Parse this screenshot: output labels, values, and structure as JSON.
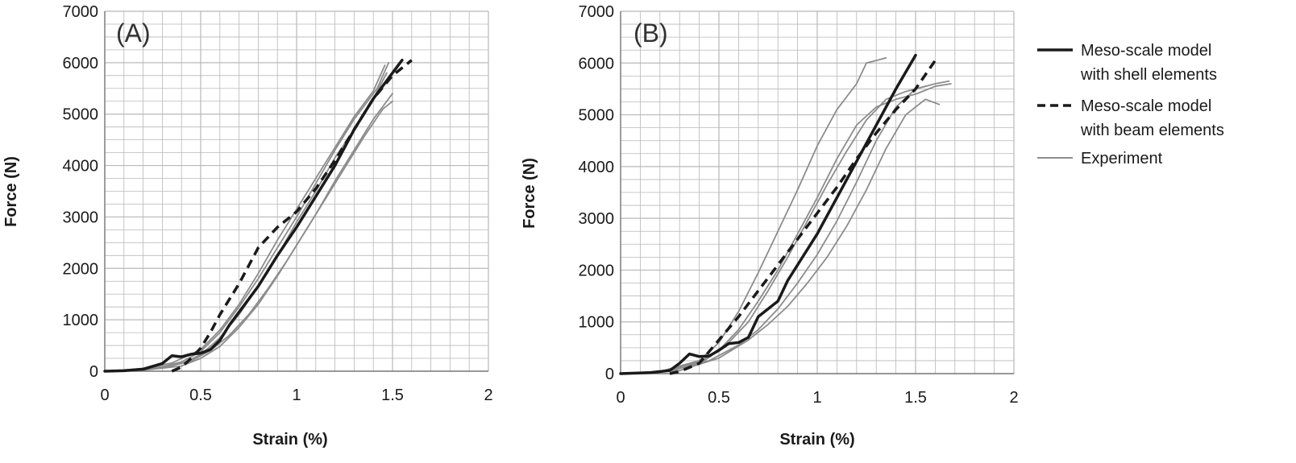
{
  "chart_data": [
    {
      "type": "line",
      "panel_label": "(A)",
      "xlabel": "Strain (%)",
      "ylabel": "Force (N)",
      "xlim": [
        0,
        2
      ],
      "ylim": [
        0,
        7000
      ],
      "x_ticks": [
        "0",
        "0.5",
        "1",
        "1.5",
        "2"
      ],
      "y_ticks": [
        "0",
        "1000",
        "2000",
        "3000",
        "4000",
        "5000",
        "6000",
        "7000"
      ],
      "grid": true,
      "series": [
        {
          "name": "Meso-scale model with shell elements",
          "style": "solid-bold",
          "points": [
            [
              0,
              0
            ],
            [
              0.1,
              10
            ],
            [
              0.2,
              40
            ],
            [
              0.3,
              150
            ],
            [
              0.35,
              300
            ],
            [
              0.4,
              280
            ],
            [
              0.45,
              330
            ],
            [
              0.5,
              350
            ],
            [
              0.55,
              420
            ],
            [
              0.6,
              600
            ],
            [
              0.65,
              900
            ],
            [
              0.7,
              1150
            ],
            [
              0.8,
              1650
            ],
            [
              0.9,
              2250
            ],
            [
              1.0,
              2800
            ],
            [
              1.1,
              3400
            ],
            [
              1.2,
              4000
            ],
            [
              1.3,
              4700
            ],
            [
              1.4,
              5300
            ],
            [
              1.5,
              5800
            ],
            [
              1.55,
              6050
            ]
          ]
        },
        {
          "name": "Meso-scale model with beam elements",
          "style": "dashed",
          "points": [
            [
              0.35,
              0
            ],
            [
              0.4,
              80
            ],
            [
              0.45,
              250
            ],
            [
              0.5,
              450
            ],
            [
              0.55,
              750
            ],
            [
              0.6,
              1100
            ],
            [
              0.7,
              1700
            ],
            [
              0.8,
              2400
            ],
            [
              0.9,
              2800
            ],
            [
              1.0,
              3100
            ],
            [
              1.1,
              3550
            ],
            [
              1.2,
              4100
            ],
            [
              1.3,
              4700
            ],
            [
              1.4,
              5300
            ],
            [
              1.5,
              5750
            ],
            [
              1.6,
              6050
            ]
          ]
        },
        {
          "name": "Experiment",
          "style": "thin-gray",
          "points": [
            [
              0,
              0
            ],
            [
              0.2,
              30
            ],
            [
              0.4,
              150
            ],
            [
              0.5,
              320
            ],
            [
              0.6,
              650
            ],
            [
              0.7,
              1100
            ],
            [
              0.8,
              1650
            ],
            [
              0.9,
              2250
            ],
            [
              1.0,
              2900
            ],
            [
              1.1,
              3500
            ],
            [
              1.2,
              4150
            ],
            [
              1.3,
              4700
            ],
            [
              1.4,
              5300
            ],
            [
              1.47,
              5800
            ]
          ]
        },
        {
          "name": "Experiment",
          "style": "thin-gray",
          "points": [
            [
              0,
              0
            ],
            [
              0.2,
              20
            ],
            [
              0.4,
              100
            ],
            [
              0.5,
              250
            ],
            [
              0.6,
              480
            ],
            [
              0.7,
              850
            ],
            [
              0.8,
              1300
            ],
            [
              0.9,
              1850
            ],
            [
              1.0,
              2450
            ],
            [
              1.1,
              3050
            ],
            [
              1.2,
              3700
            ],
            [
              1.3,
              4300
            ],
            [
              1.4,
              4900
            ],
            [
              1.5,
              5400
            ]
          ]
        },
        {
          "name": "Experiment",
          "style": "thin-gray",
          "points": [
            [
              0,
              0
            ],
            [
              0.25,
              40
            ],
            [
              0.4,
              180
            ],
            [
              0.5,
              380
            ],
            [
              0.6,
              750
            ],
            [
              0.7,
              1250
            ],
            [
              0.8,
              1800
            ],
            [
              0.9,
              2400
            ],
            [
              1.0,
              3000
            ],
            [
              1.1,
              3650
            ],
            [
              1.2,
              4300
            ],
            [
              1.3,
              4900
            ],
            [
              1.42,
              5500
            ],
            [
              1.48,
              6000
            ]
          ]
        },
        {
          "name": "Experiment",
          "style": "thin-gray",
          "points": [
            [
              0,
              0
            ],
            [
              0.3,
              60
            ],
            [
              0.45,
              200
            ],
            [
              0.55,
              400
            ],
            [
              0.65,
              700
            ],
            [
              0.75,
              1100
            ],
            [
              0.85,
              1600
            ],
            [
              0.95,
              2150
            ],
            [
              1.05,
              2750
            ],
            [
              1.15,
              3350
            ],
            [
              1.25,
              3950
            ],
            [
              1.35,
              4550
            ],
            [
              1.45,
              5100
            ],
            [
              1.5,
              5250
            ]
          ]
        },
        {
          "name": "Experiment",
          "style": "thin-gray",
          "points": [
            [
              0,
              0
            ],
            [
              0.2,
              50
            ],
            [
              0.35,
              160
            ],
            [
              0.5,
              420
            ],
            [
              0.6,
              800
            ],
            [
              0.7,
              1300
            ],
            [
              0.8,
              1900
            ],
            [
              0.9,
              2550
            ],
            [
              1.0,
              3150
            ],
            [
              1.1,
              3750
            ],
            [
              1.2,
              4350
            ],
            [
              1.3,
              4950
            ],
            [
              1.4,
              5450
            ],
            [
              1.46,
              5950
            ]
          ]
        }
      ]
    },
    {
      "type": "line",
      "panel_label": "(B)",
      "xlabel": "Strain (%)",
      "ylabel": "Force (N)",
      "xlim": [
        0,
        2
      ],
      "ylim": [
        0,
        7000
      ],
      "x_ticks": [
        "0",
        "0.5",
        "1",
        "1.5",
        "2"
      ],
      "y_ticks": [
        "0",
        "1000",
        "2000",
        "3000",
        "4000",
        "5000",
        "6000",
        "7000"
      ],
      "grid": true,
      "series": [
        {
          "name": "Meso-scale model with shell elements",
          "style": "solid-bold",
          "points": [
            [
              0,
              0
            ],
            [
              0.15,
              20
            ],
            [
              0.25,
              60
            ],
            [
              0.3,
              200
            ],
            [
              0.35,
              380
            ],
            [
              0.4,
              330
            ],
            [
              0.45,
              340
            ],
            [
              0.5,
              450
            ],
            [
              0.55,
              580
            ],
            [
              0.6,
              600
            ],
            [
              0.65,
              700
            ],
            [
              0.7,
              1100
            ],
            [
              0.75,
              1250
            ],
            [
              0.8,
              1400
            ],
            [
              0.85,
              1800
            ],
            [
              0.9,
              2100
            ],
            [
              1.0,
              2700
            ],
            [
              1.1,
              3400
            ],
            [
              1.2,
              4100
            ],
            [
              1.3,
              4800
            ],
            [
              1.4,
              5500
            ],
            [
              1.5,
              6150
            ]
          ]
        },
        {
          "name": "Meso-scale model with beam elements",
          "style": "dashed",
          "points": [
            [
              0.25,
              0
            ],
            [
              0.3,
              40
            ],
            [
              0.4,
              200
            ],
            [
              0.5,
              650
            ],
            [
              0.6,
              1100
            ],
            [
              0.7,
              1600
            ],
            [
              0.8,
              2100
            ],
            [
              0.9,
              2600
            ],
            [
              1.0,
              3100
            ],
            [
              1.1,
              3600
            ],
            [
              1.2,
              4150
            ],
            [
              1.3,
              4650
            ],
            [
              1.4,
              5100
            ],
            [
              1.5,
              5500
            ],
            [
              1.6,
              6050
            ]
          ]
        },
        {
          "name": "Experiment",
          "style": "thin-gray",
          "points": [
            [
              0,
              0
            ],
            [
              0.2,
              40
            ],
            [
              0.4,
              250
            ],
            [
              0.5,
              600
            ],
            [
              0.6,
              1200
            ],
            [
              0.7,
              1950
            ],
            [
              0.8,
              2750
            ],
            [
              0.9,
              3550
            ],
            [
              1.0,
              4400
            ],
            [
              1.1,
              5100
            ],
            [
              1.2,
              5600
            ],
            [
              1.25,
              6000
            ],
            [
              1.3,
              6050
            ],
            [
              1.35,
              6100
            ]
          ]
        },
        {
          "name": "Experiment",
          "style": "thin-gray",
          "points": [
            [
              0,
              0
            ],
            [
              0.2,
              30
            ],
            [
              0.4,
              180
            ],
            [
              0.5,
              450
            ],
            [
              0.6,
              850
            ],
            [
              0.7,
              1400
            ],
            [
              0.8,
              2000
            ],
            [
              0.9,
              2700
            ],
            [
              1.0,
              3400
            ],
            [
              1.1,
              4150
            ],
            [
              1.2,
              4800
            ],
            [
              1.3,
              5150
            ],
            [
              1.4,
              5300
            ],
            [
              1.5,
              5400
            ],
            [
              1.6,
              5550
            ],
            [
              1.68,
              5600
            ]
          ]
        },
        {
          "name": "Experiment",
          "style": "thin-gray",
          "points": [
            [
              0,
              0
            ],
            [
              0.25,
              50
            ],
            [
              0.45,
              250
            ],
            [
              0.6,
              550
            ],
            [
              0.7,
              850
            ],
            [
              0.8,
              1250
            ],
            [
              0.9,
              1750
            ],
            [
              1.0,
              2300
            ],
            [
              1.1,
              2950
            ],
            [
              1.2,
              3700
            ],
            [
              1.3,
              4500
            ],
            [
              1.4,
              5150
            ],
            [
              1.5,
              5500
            ],
            [
              1.6,
              5600
            ],
            [
              1.67,
              5650
            ]
          ]
        },
        {
          "name": "Experiment",
          "style": "thin-gray",
          "points": [
            [
              0,
              0
            ],
            [
              0.3,
              60
            ],
            [
              0.5,
              300
            ],
            [
              0.65,
              650
            ],
            [
              0.75,
              950
            ],
            [
              0.85,
              1300
            ],
            [
              0.95,
              1750
            ],
            [
              1.05,
              2250
            ],
            [
              1.15,
              2850
            ],
            [
              1.25,
              3550
            ],
            [
              1.35,
              4350
            ],
            [
              1.45,
              5000
            ],
            [
              1.55,
              5300
            ],
            [
              1.62,
              5200
            ]
          ]
        },
        {
          "name": "Experiment",
          "style": "thin-gray",
          "points": [
            [
              0,
              0
            ],
            [
              0.2,
              40
            ],
            [
              0.4,
              220
            ],
            [
              0.55,
              600
            ],
            [
              0.65,
              1000
            ],
            [
              0.75,
              1600
            ],
            [
              0.85,
              2250
            ],
            [
              0.95,
              2950
            ],
            [
              1.05,
              3650
            ],
            [
              1.15,
              4300
            ],
            [
              1.25,
              4900
            ],
            [
              1.35,
              5300
            ],
            [
              1.45,
              5450
            ],
            [
              1.55,
              5550
            ]
          ]
        }
      ]
    }
  ],
  "legend": {
    "items": [
      {
        "line1": "Meso-scale model",
        "line2": "with shell elements",
        "style": "solid-bold"
      },
      {
        "line1": "Meso-scale model",
        "line2": "with beam elements",
        "style": "dashed"
      },
      {
        "line1": "Experiment",
        "line2": "",
        "style": "thin-gray"
      }
    ]
  },
  "colors": {
    "grid": "#b8b8b8",
    "experiment": "#8c8c8c",
    "model": "#1a1a1a"
  }
}
